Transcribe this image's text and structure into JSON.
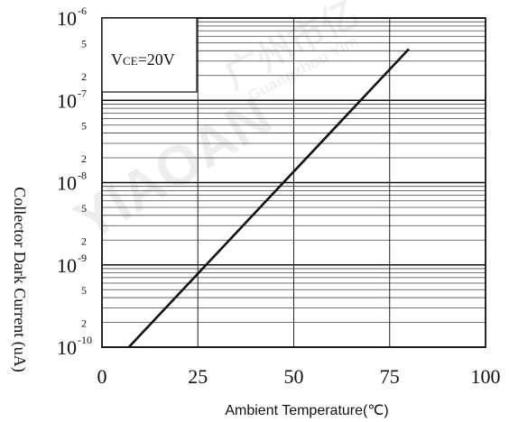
{
  "chart_data": {
    "type": "line",
    "title": "",
    "xlabel": "Ambient Temperature(℃)",
    "ylabel": "Collector Dark Current (uA)",
    "xlim": [
      0,
      100
    ],
    "ylim": [
      1e-10,
      1e-06
    ],
    "yscale": "log",
    "grid": true,
    "x_ticks": [
      "0",
      "25",
      "50",
      "75",
      "100"
    ],
    "y_major_ticks": [
      {
        "base": "10",
        "exp": "-10",
        "value": 1e-10
      },
      {
        "base": "10",
        "exp": "-9",
        "value": 1e-09
      },
      {
        "base": "10",
        "exp": "-8",
        "value": 1e-08
      },
      {
        "base": "10",
        "exp": "-7",
        "value": 1e-07
      },
      {
        "base": "10",
        "exp": "-6",
        "value": 1e-06
      }
    ],
    "y_minor_labels": [
      "2",
      "5"
    ],
    "annotation": {
      "main": "V",
      "sub": "CE",
      "rest": "=20V"
    },
    "series": [
      {
        "x": [
          7,
          80
        ],
        "y": [
          1e-10,
          4.2e-07
        ]
      }
    ],
    "watermark": {
      "text": "YIAOAN",
      "cn": "广州市亿",
      "pinyin": "Guangzhou Yim"
    }
  }
}
